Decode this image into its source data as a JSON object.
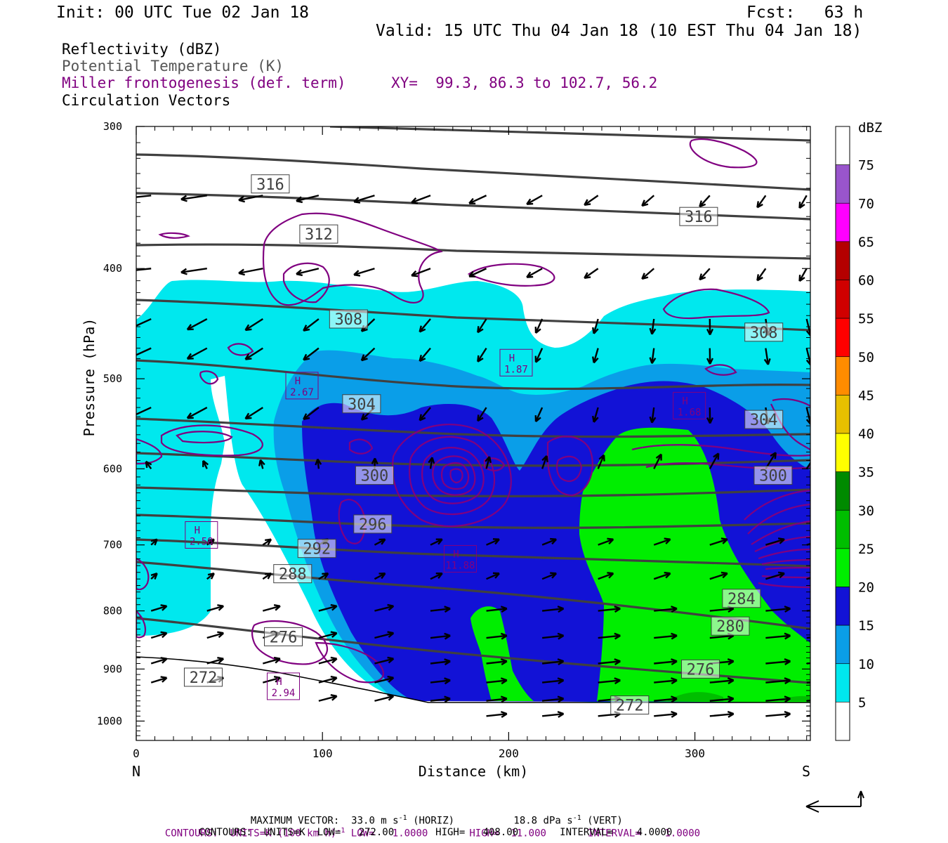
{
  "header": {
    "init": "Init: 00 UTC Tue 02 Jan 18",
    "fcst": "Fcst:   63 h",
    "valid": "Valid: 15 UTC Thu 04 Jan 18 (10 EST Thu 04 Jan 18)"
  },
  "legend": {
    "reflectivity": "Reflectivity (dBZ)",
    "theta": "Potential Temperature (K)",
    "miller": "Miller frontogenesis (def. term)",
    "xy": "XY=  99.3, 86.3 to 102.7, 56.2",
    "vectors": "Circulation Vectors"
  },
  "footer": {
    "max_vector_label": "MAXIMUM VECTOR:",
    "max_vector_horiz": "33.0 m s",
    "horiz_suffix": "(HORIZ)",
    "max_vector_vert": "18.8 dPa s",
    "vert_suffix": "(VERT)",
    "contours1": "CONTOURS:  UNITS=K (100 km h)",
    "contours1_rest": " LOW=   1.0000       HIGH=  11.000       INTERVAL=    1.0000",
    "contours2": "CONTOURS:  UNITS=K  LOW=   272.00       HIGH=   408.00       INTERVAL=    4.0000",
    "sup_minus1": "-1"
  },
  "chart_data": {
    "type": "cross-section",
    "xlabel": "Distance (km)",
    "ylabel": "Pressure (hPa)",
    "x_left_label": "N",
    "x_right_label": "S",
    "xlim": [
      0,
      362
    ],
    "ylim": [
      300,
      1040
    ],
    "y_log": true,
    "x_ticks": [
      0,
      100,
      200,
      300
    ],
    "y_ticks": [
      300,
      400,
      500,
      600,
      700,
      800,
      900,
      1000
    ],
    "colorbar": {
      "title": "dBZ",
      "levels": [
        5,
        10,
        15,
        20,
        25,
        30,
        35,
        40,
        45,
        50,
        55,
        60,
        65,
        70,
        75
      ],
      "colors": [
        "#ffffff",
        "#00e8ee",
        "#0a9ee8",
        "#1212d6",
        "#00ee00",
        "#00be00",
        "#008a00",
        "#ffff00",
        "#e8c000",
        "#ff8c00",
        "#ff0000",
        "#d00000",
        "#b40000",
        "#ff00ff",
        "#9955cc",
        "#ffffff"
      ]
    },
    "theta_labels": [
      {
        "value": "316",
        "x": 72,
        "p": 337
      },
      {
        "value": "316",
        "x": 302,
        "p": 360
      },
      {
        "value": "312",
        "x": 98,
        "p": 373
      },
      {
        "value": "308",
        "x": 114,
        "p": 443
      },
      {
        "value": "308",
        "x": 337,
        "p": 455
      },
      {
        "value": "304",
        "x": 121,
        "p": 526
      },
      {
        "value": "304",
        "x": 337,
        "p": 543
      },
      {
        "value": "300",
        "x": 128,
        "p": 608
      },
      {
        "value": "300",
        "x": 342,
        "p": 608
      },
      {
        "value": "296",
        "x": 127,
        "p": 671
      },
      {
        "value": "292",
        "x": 97,
        "p": 705
      },
      {
        "value": "288",
        "x": 84,
        "p": 742
      },
      {
        "value": "284",
        "x": 325,
        "p": 780
      },
      {
        "value": "280",
        "x": 319,
        "p": 825
      },
      {
        "value": "276",
        "x": 79,
        "p": 843
      },
      {
        "value": "276",
        "x": 303,
        "p": 900
      },
      {
        "value": "272",
        "x": 36,
        "p": 915
      },
      {
        "value": "272",
        "x": 265,
        "p": 968
      }
    ],
    "fronto_highs": [
      {
        "value": "2.67",
        "x": 89,
        "p": 507
      },
      {
        "value": "1.87",
        "x": 204,
        "p": 484
      },
      {
        "value": "1.68",
        "x": 297,
        "p": 528
      },
      {
        "value": "2.58",
        "x": 35,
        "p": 686
      },
      {
        "value": "11.88",
        "x": 174,
        "p": 720
      },
      {
        "value": "2.94",
        "x": 79,
        "p": 932
      }
    ]
  }
}
